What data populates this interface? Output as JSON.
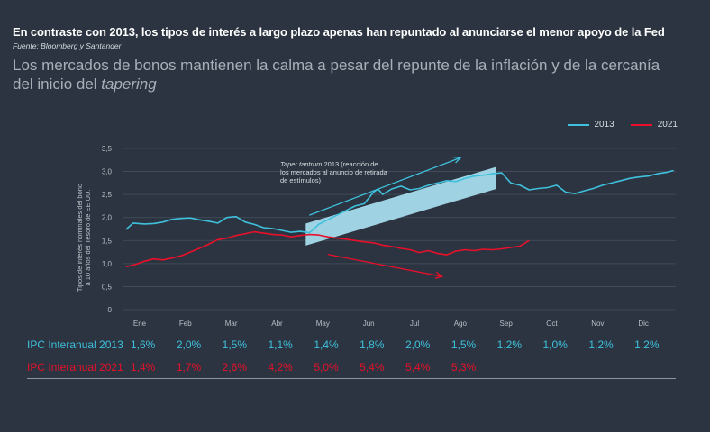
{
  "header": {
    "title": "En contraste con 2013, los tipos de interés a largo plazo apenas han repuntado al anunciarse el menor apoyo de la Fed",
    "source": "Fuente: Bloomberg y Santander",
    "subtitle_main": "Los mercados de bonos mantienen la calma a pesar del repunte de la inflación y de la cercanía del inicio del ",
    "subtitle_italic": "tapering"
  },
  "legend": {
    "series_2013": "2013",
    "series_2021": "2021"
  },
  "colors": {
    "series_2013": "#3fc0dc",
    "series_2021": "#e8102a",
    "background": "#2b3440",
    "band": "#a9dff0"
  },
  "chart_data": {
    "type": "line",
    "ylabel_line1": "Tipos de interés nominales del bono",
    "ylabel_line2": "a 10 años del Tesoro de EE.UU.",
    "ylim": [
      0,
      3.5
    ],
    "yticks": [
      "0",
      "0,5",
      "1,0",
      "1,5",
      "2,0",
      "2,5",
      "3,0",
      "3,5"
    ],
    "ytick_values": [
      0,
      0.5,
      1.0,
      1.5,
      2.0,
      2.5,
      3.0,
      3.5
    ],
    "xticks": [
      "Ene",
      "Feb",
      "Mar",
      "Abr",
      "May",
      "Jun",
      "Jul",
      "Ago",
      "Sep",
      "Oct",
      "Nov",
      "Dic"
    ],
    "x_unit": "month index (0 = start of Jan, 12 = end of Dec)",
    "series": [
      {
        "name": "2013",
        "x": [
          0.0,
          0.15,
          0.4,
          0.6,
          0.8,
          1.0,
          1.2,
          1.4,
          1.6,
          1.8,
          2.0,
          2.2,
          2.4,
          2.6,
          2.8,
          3.0,
          3.2,
          3.4,
          3.6,
          3.8,
          4.0,
          4.1,
          4.2,
          4.4,
          4.6,
          4.8,
          5.0,
          5.2,
          5.4,
          5.5,
          5.6,
          5.8,
          6.0,
          6.2,
          6.4,
          6.6,
          6.8,
          7.0,
          7.2,
          7.4,
          7.6,
          7.8,
          8.0,
          8.2,
          8.4,
          8.6,
          8.8,
          9.0,
          9.2,
          9.4,
          9.6,
          9.8,
          10.0,
          10.2,
          10.4,
          10.6,
          10.8,
          11.0,
          11.2,
          11.4,
          11.6,
          11.8,
          11.95
        ],
        "values": [
          1.74,
          1.88,
          1.86,
          1.87,
          1.9,
          1.96,
          1.98,
          1.99,
          1.95,
          1.92,
          1.88,
          2.0,
          2.02,
          1.9,
          1.85,
          1.78,
          1.76,
          1.72,
          1.68,
          1.7,
          1.67,
          1.75,
          1.85,
          1.95,
          2.05,
          2.15,
          2.25,
          2.3,
          2.55,
          2.62,
          2.5,
          2.62,
          2.68,
          2.6,
          2.63,
          2.7,
          2.75,
          2.8,
          2.78,
          2.85,
          2.9,
          2.92,
          2.95,
          2.97,
          2.75,
          2.7,
          2.6,
          2.63,
          2.65,
          2.7,
          2.55,
          2.52,
          2.58,
          2.63,
          2.7,
          2.75,
          2.8,
          2.85,
          2.88,
          2.9,
          2.95,
          2.98,
          3.02
        ]
      },
      {
        "name": "2021",
        "x": [
          0.0,
          0.2,
          0.4,
          0.6,
          0.8,
          1.0,
          1.2,
          1.4,
          1.6,
          1.8,
          2.0,
          2.2,
          2.4,
          2.6,
          2.8,
          3.0,
          3.2,
          3.4,
          3.6,
          3.8,
          4.0,
          4.2,
          4.4,
          4.6,
          4.8,
          5.0,
          5.2,
          5.4,
          5.6,
          5.8,
          6.0,
          6.2,
          6.4,
          6.6,
          6.8,
          7.0,
          7.2,
          7.4,
          7.6,
          7.8,
          8.0,
          8.2,
          8.4,
          8.6,
          8.8
        ],
        "values": [
          0.93,
          0.98,
          1.05,
          1.1,
          1.08,
          1.12,
          1.17,
          1.25,
          1.33,
          1.42,
          1.52,
          1.55,
          1.61,
          1.65,
          1.69,
          1.66,
          1.63,
          1.62,
          1.58,
          1.61,
          1.63,
          1.62,
          1.58,
          1.55,
          1.53,
          1.5,
          1.47,
          1.45,
          1.4,
          1.37,
          1.33,
          1.3,
          1.24,
          1.28,
          1.22,
          1.19,
          1.27,
          1.3,
          1.28,
          1.31,
          1.3,
          1.32,
          1.35,
          1.38,
          1.5
        ]
      }
    ],
    "annotation_title_italic": "Taper tantrum",
    "annotation_title_rest": " 2013  (reacción de",
    "annotation_line2": "los mercados al anuncio de retirada",
    "annotation_line3": "de estímulos)",
    "band": {
      "x_start": 4.0,
      "x_end": 8.0,
      "center_start": 1.63,
      "center_end": 2.86
    },
    "arrow_2013": {
      "x_start": 4.0,
      "y_start": 2.05,
      "x_end": 7.3,
      "y_end": 3.3
    },
    "arrow_2021": {
      "x_start": 4.4,
      "y_start": 1.2,
      "x_end": 6.9,
      "y_end": 0.72
    }
  },
  "table": {
    "row_2013": {
      "label": "IPC Interanual 2013",
      "values": [
        "1,6%",
        "2,0%",
        "1,5%",
        "1,1%",
        "1,4%",
        "1,8%",
        "2,0%",
        "1,5%",
        "1,2%",
        "1,0%",
        "1,2%",
        "1,2%"
      ]
    },
    "row_2021": {
      "label": "IPC Interanual 2021",
      "values": [
        "1,4%",
        "1,7%",
        "2,6%",
        "4,2%",
        "5,0%",
        "5,4%",
        "5,4%",
        "5,3%"
      ]
    }
  }
}
